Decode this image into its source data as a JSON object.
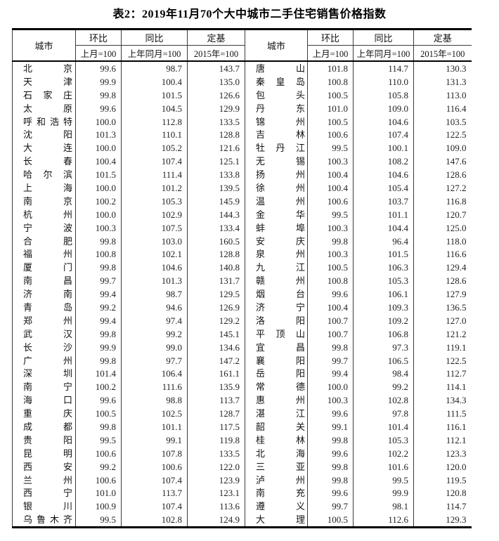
{
  "title": "表2：2019年11月70个大中城市二手住宅销售价格指数",
  "colors": {
    "border_heavy": "#000000",
    "border_light": "#3b3b3b",
    "text": "#111111",
    "number": "#222222",
    "background": "#ffffff"
  },
  "table": {
    "header": {
      "city": "城市",
      "groups": [
        {
          "label": "环比",
          "base": "上月=100"
        },
        {
          "label": "同比",
          "base": "上年同月=100"
        },
        {
          "label": "定基",
          "base": "2015年=100"
        }
      ]
    },
    "left_rows": [
      [
        "北京",
        "99.6",
        "98.7",
        "143.7"
      ],
      [
        "天津",
        "99.9",
        "100.4",
        "135.0"
      ],
      [
        "石家庄",
        "99.8",
        "101.5",
        "126.6"
      ],
      [
        "太原",
        "99.6",
        "104.5",
        "129.9"
      ],
      [
        "呼和浩特",
        "100.0",
        "112.8",
        "133.5"
      ],
      [
        "沈阳",
        "101.3",
        "110.1",
        "128.8"
      ],
      [
        "大连",
        "100.0",
        "105.2",
        "121.6"
      ],
      [
        "长春",
        "100.4",
        "107.4",
        "125.1"
      ],
      [
        "哈尔滨",
        "101.5",
        "111.4",
        "133.8"
      ],
      [
        "上海",
        "100.0",
        "101.2",
        "139.5"
      ],
      [
        "南京",
        "100.2",
        "105.3",
        "145.9"
      ],
      [
        "杭州",
        "100.0",
        "102.9",
        "144.3"
      ],
      [
        "宁波",
        "100.3",
        "107.5",
        "133.4"
      ],
      [
        "合肥",
        "99.8",
        "103.0",
        "160.5"
      ],
      [
        "福州",
        "100.8",
        "102.1",
        "128.8"
      ],
      [
        "厦门",
        "99.8",
        "104.6",
        "140.8"
      ],
      [
        "南昌",
        "99.7",
        "101.3",
        "131.7"
      ],
      [
        "济南",
        "99.4",
        "98.7",
        "129.5"
      ],
      [
        "青岛",
        "99.2",
        "94.6",
        "126.9"
      ],
      [
        "郑州",
        "99.4",
        "97.4",
        "129.2"
      ],
      [
        "武汉",
        "99.8",
        "99.2",
        "145.1"
      ],
      [
        "长沙",
        "99.9",
        "99.0",
        "134.6"
      ],
      [
        "广州",
        "99.8",
        "97.7",
        "147.2"
      ],
      [
        "深圳",
        "101.4",
        "106.4",
        "161.1"
      ],
      [
        "南宁",
        "100.2",
        "111.6",
        "135.9"
      ],
      [
        "海口",
        "99.6",
        "98.8",
        "113.7"
      ],
      [
        "重庆",
        "100.5",
        "102.5",
        "128.7"
      ],
      [
        "成都",
        "99.8",
        "101.1",
        "117.5"
      ],
      [
        "贵阳",
        "99.5",
        "99.1",
        "119.8"
      ],
      [
        "昆明",
        "100.6",
        "107.8",
        "133.5"
      ],
      [
        "西安",
        "99.2",
        "100.6",
        "122.0"
      ],
      [
        "兰州",
        "100.6",
        "107.4",
        "123.9"
      ],
      [
        "西宁",
        "101.0",
        "113.7",
        "123.1"
      ],
      [
        "银川",
        "100.9",
        "107.4",
        "113.6"
      ],
      [
        "乌鲁木齐",
        "99.5",
        "102.8",
        "124.9"
      ]
    ],
    "right_rows": [
      [
        "唐山",
        "101.8",
        "114.7",
        "130.3"
      ],
      [
        "秦皇岛",
        "100.8",
        "110.0",
        "131.3"
      ],
      [
        "包头",
        "100.5",
        "105.8",
        "113.0"
      ],
      [
        "丹东",
        "101.0",
        "109.0",
        "116.4"
      ],
      [
        "锦州",
        "100.5",
        "104.6",
        "103.5"
      ],
      [
        "吉林",
        "100.6",
        "107.4",
        "122.5"
      ],
      [
        "牡丹江",
        "99.5",
        "100.1",
        "109.0"
      ],
      [
        "无锡",
        "100.3",
        "108.2",
        "147.6"
      ],
      [
        "扬州",
        "100.4",
        "104.6",
        "128.6"
      ],
      [
        "徐州",
        "100.4",
        "105.4",
        "127.2"
      ],
      [
        "温州",
        "100.6",
        "103.7",
        "116.8"
      ],
      [
        "金华",
        "99.5",
        "101.1",
        "120.7"
      ],
      [
        "蚌埠",
        "100.3",
        "104.4",
        "125.0"
      ],
      [
        "安庆",
        "99.8",
        "96.4",
        "118.0"
      ],
      [
        "泉州",
        "100.3",
        "101.5",
        "116.6"
      ],
      [
        "九江",
        "100.5",
        "106.3",
        "129.4"
      ],
      [
        "赣州",
        "100.8",
        "105.3",
        "128.6"
      ],
      [
        "烟台",
        "99.6",
        "106.1",
        "127.9"
      ],
      [
        "济宁",
        "100.4",
        "109.3",
        "136.5"
      ],
      [
        "洛阳",
        "100.7",
        "109.2",
        "127.0"
      ],
      [
        "平顶山",
        "100.7",
        "106.8",
        "121.2"
      ],
      [
        "宜昌",
        "99.8",
        "97.3",
        "119.1"
      ],
      [
        "襄阳",
        "99.7",
        "106.5",
        "122.5"
      ],
      [
        "岳阳",
        "99.4",
        "98.4",
        "112.7"
      ],
      [
        "常德",
        "100.0",
        "99.2",
        "114.1"
      ],
      [
        "惠州",
        "100.3",
        "102.8",
        "134.3"
      ],
      [
        "湛江",
        "99.6",
        "97.8",
        "111.5"
      ],
      [
        "韶关",
        "99.1",
        "101.4",
        "116.1"
      ],
      [
        "桂林",
        "99.8",
        "105.3",
        "112.1"
      ],
      [
        "北海",
        "99.6",
        "102.2",
        "123.3"
      ],
      [
        "三亚",
        "99.8",
        "101.6",
        "120.0"
      ],
      [
        "泸州",
        "99.8",
        "99.5",
        "119.5"
      ],
      [
        "南充",
        "99.6",
        "99.9",
        "120.8"
      ],
      [
        "遵义",
        "99.7",
        "98.1",
        "114.7"
      ],
      [
        "大理",
        "100.5",
        "112.6",
        "129.3"
      ]
    ]
  }
}
